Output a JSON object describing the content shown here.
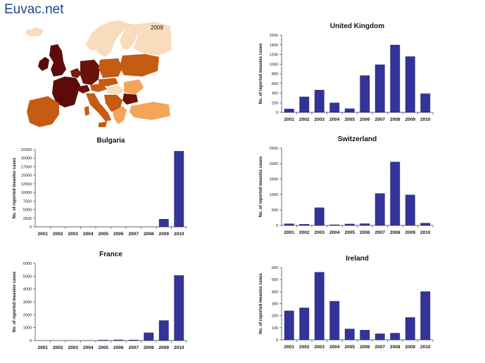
{
  "brand": "Euvac.net",
  "map": {
    "year_label": "2009"
  },
  "colors": {
    "bar_fill": "#33339a",
    "bar_stroke": "#1e1e66"
  },
  "chart_data": [
    {
      "type": "bar",
      "title": "United Kingdom",
      "ylabel": "No. of reported measles cases",
      "categories": [
        "2001",
        "2002",
        "2003",
        "2004",
        "2005",
        "2006",
        "2007",
        "2008",
        "2009",
        "2010"
      ],
      "values": [
        70,
        320,
        460,
        195,
        75,
        760,
        985,
        1395,
        1155,
        385
      ],
      "ylim": [
        0,
        1600
      ],
      "yticks": [
        0,
        200,
        400,
        600,
        800,
        1000,
        1200,
        1400,
        1600
      ]
    },
    {
      "type": "bar",
      "title": "Bulgaria",
      "ylabel": "No. of reported measles cases",
      "categories": [
        "2001",
        "2002",
        "2003",
        "2004",
        "2005",
        "2006",
        "2007",
        "2008",
        "2009",
        "2010"
      ],
      "values": [
        0,
        0,
        0,
        0,
        0,
        0,
        0,
        0,
        2200,
        22000
      ],
      "ylim": [
        0,
        22500
      ],
      "yticks": [
        0,
        2500,
        5000,
        7500,
        10000,
        12500,
        15000,
        17500,
        20000,
        22500
      ]
    },
    {
      "type": "bar",
      "title": "Switzerland",
      "ylabel": "No. of reported measles cases",
      "categories": [
        "2001",
        "2002",
        "2003",
        "2004",
        "2005",
        "2006",
        "2007",
        "2008",
        "2009",
        "2010"
      ],
      "values": [
        50,
        35,
        570,
        20,
        45,
        55,
        1030,
        2050,
        985,
        70
      ],
      "ylim": [
        0,
        2500
      ],
      "yticks": [
        0,
        500,
        1000,
        1500,
        2000,
        2500
      ]
    },
    {
      "type": "bar",
      "title": "France",
      "ylabel": "No. of reported measles cases",
      "categories": [
        "2001",
        "2002",
        "2003",
        "2004",
        "2005",
        "2006",
        "2007",
        "2008",
        "2009",
        "2010"
      ],
      "values": [
        0,
        0,
        0,
        0,
        30,
        50,
        40,
        600,
        1550,
        5050
      ],
      "ylim": [
        0,
        6000
      ],
      "yticks": [
        0,
        1000,
        2000,
        3000,
        4000,
        5000,
        6000
      ]
    },
    {
      "type": "bar",
      "title": "Ireland",
      "ylabel": "No. of reported measles cases",
      "categories": [
        "2001",
        "2002",
        "2003",
        "2004",
        "2005",
        "2006",
        "2007",
        "2008",
        "2009",
        "2010"
      ],
      "values": [
        240,
        265,
        560,
        320,
        90,
        80,
        50,
        55,
        185,
        400
      ],
      "ylim": [
        0,
        600
      ],
      "yticks": [
        0,
        100,
        200,
        300,
        400,
        500,
        600
      ]
    }
  ]
}
